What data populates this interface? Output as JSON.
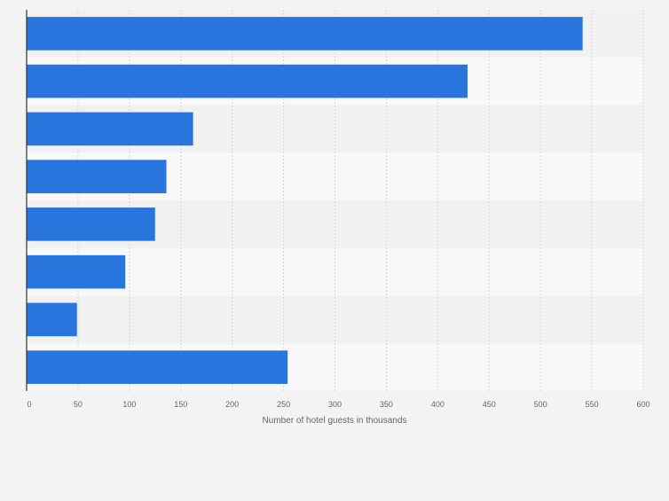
{
  "chart_data": {
    "type": "bar",
    "orientation": "horizontal",
    "title": "",
    "xlabel": "Number of hotel guests in thousands",
    "ylabel": "",
    "xlim": [
      0,
      600
    ],
    "x_ticks": [
      "0",
      "50",
      "100",
      "150",
      "200",
      "250",
      "300",
      "350",
      "400",
      "450",
      "500",
      "550",
      "600"
    ],
    "categories": [
      "",
      "",
      "",
      "",
      "",
      "",
      "",
      ""
    ],
    "values": [
      541,
      429,
      162,
      136,
      125,
      96,
      49,
      254
    ],
    "grid": true,
    "legend": "none",
    "colors": {
      "bar": "#2876dd",
      "background": "#f3f3f3",
      "band_light": "#f8f8f8",
      "band_dark": "#f1f1f1",
      "grid": "#d6d6d6",
      "axis": "#333333",
      "text": "#666666"
    }
  }
}
